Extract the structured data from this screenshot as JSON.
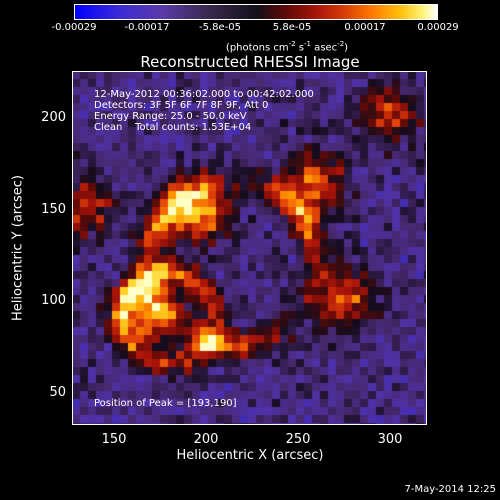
{
  "colorbar": {
    "ticks": [
      "-0.00029",
      "-0.00017",
      "-5.8e-05",
      "5.8e-05",
      "0.00017",
      "0.00029"
    ],
    "units_prefix": "(photons cm",
    "units_exp1": "-2",
    "units_mid": " s",
    "units_exp2": "-1",
    "units_mid2": " asec",
    "units_exp3": "-2",
    "units_suffix": ")"
  },
  "annotations": {
    "time_range": "12-May-2012 00:36:02.000 to 00:42:02.000",
    "detectors": "Detectors: 3F 5F 6F 7F 8F 9F, Att 0",
    "energy_range": "Energy Range: 25.0 - 50.0 keV",
    "clean_counts": "Clean    Total counts: 1.53E+04",
    "peak_position": "Position of Peak = [193,190]"
  },
  "timestamp": "7-May-2014 12:25",
  "chart_data": {
    "type": "heatmap",
    "title": "Reconstructed RHESSI Image",
    "xlabel": "Heliocentric X (arcsec)",
    "ylabel": "Heliocentric Y (arcsec)",
    "xlim": [
      128,
      320
    ],
    "ylim": [
      32,
      224
    ],
    "x_ticks": [
      "150",
      "200",
      "250",
      "300"
    ],
    "y_ticks": [
      "200",
      "150",
      "100",
      "50"
    ],
    "colormap": "blue-purple-black-red-orange-yellow-white",
    "value_range": [
      -0.00029,
      0.00029
    ],
    "features": [
      {
        "name": "upper-central ridge",
        "x": 197,
        "y": 148,
        "level": 0.95
      },
      {
        "name": "upper-right arc",
        "x": 260,
        "y": 165,
        "level": 0.8
      },
      {
        "name": "lower-left arc",
        "x": 170,
        "y": 95,
        "level": 0.9
      },
      {
        "name": "left edge blob",
        "x": 135,
        "y": 150,
        "level": 0.7
      },
      {
        "name": "right lower arc",
        "x": 275,
        "y": 100,
        "level": 0.8
      },
      {
        "name": "top-right patch",
        "x": 300,
        "y": 200,
        "level": 0.7
      }
    ]
  }
}
